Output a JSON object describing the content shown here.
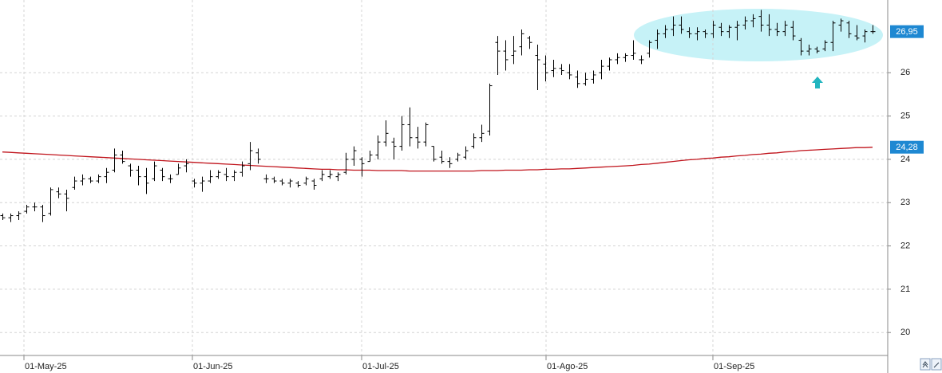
{
  "chart_data": {
    "type": "ohlc",
    "ohlc": [
      [
        22.7,
        22.75,
        22.6,
        22.65
      ],
      [
        22.65,
        22.75,
        22.55,
        22.7
      ],
      [
        22.7,
        22.8,
        22.6,
        22.75
      ],
      [
        22.8,
        22.95,
        22.75,
        22.9
      ],
      [
        22.9,
        23.0,
        22.8,
        22.9
      ],
      [
        22.9,
        22.95,
        22.55,
        22.7
      ],
      [
        22.75,
        23.35,
        22.7,
        23.3
      ],
      [
        23.25,
        23.35,
        23.1,
        23.2
      ],
      [
        23.2,
        23.3,
        22.8,
        23.1
      ],
      [
        23.35,
        23.6,
        23.3,
        23.5
      ],
      [
        23.5,
        23.65,
        23.4,
        23.55
      ],
      [
        23.55,
        23.6,
        23.45,
        23.5
      ],
      [
        23.5,
        23.65,
        23.45,
        23.6
      ],
      [
        23.6,
        23.8,
        23.45,
        23.7
      ],
      [
        23.75,
        24.25,
        23.7,
        24.1
      ],
      [
        24.1,
        24.2,
        23.9,
        23.95
      ],
      [
        23.85,
        23.9,
        23.6,
        23.75
      ],
      [
        23.75,
        23.85,
        23.4,
        23.6
      ],
      [
        23.6,
        23.8,
        23.2,
        23.45
      ],
      [
        23.55,
        23.95,
        23.5,
        23.85
      ],
      [
        23.75,
        23.8,
        23.5,
        23.6
      ],
      [
        23.55,
        23.65,
        23.45,
        23.55
      ],
      [
        23.65,
        23.9,
        23.65,
        23.8
      ],
      [
        23.85,
        24.0,
        23.7,
        23.9
      ],
      [
        23.5,
        23.55,
        23.35,
        23.45
      ],
      [
        23.45,
        23.6,
        23.25,
        23.5
      ],
      [
        23.5,
        23.75,
        23.45,
        23.6
      ],
      [
        23.6,
        23.75,
        23.55,
        23.7
      ],
      [
        23.65,
        23.8,
        23.5,
        23.6
      ],
      [
        23.6,
        23.75,
        23.5,
        23.7
      ],
      [
        23.7,
        23.95,
        23.6,
        23.85
      ],
      [
        23.9,
        24.4,
        23.75,
        24.2
      ],
      [
        24.15,
        24.25,
        23.9,
        24.0
      ],
      [
        23.55,
        23.65,
        23.45,
        23.55
      ],
      [
        23.55,
        23.6,
        23.45,
        23.5
      ],
      [
        23.5,
        23.55,
        23.4,
        23.45
      ],
      [
        23.45,
        23.55,
        23.35,
        23.5
      ],
      [
        23.45,
        23.5,
        23.35,
        23.4
      ],
      [
        23.45,
        23.6,
        23.4,
        23.55
      ],
      [
        23.5,
        23.55,
        23.3,
        23.4
      ],
      [
        23.55,
        23.75,
        23.5,
        23.65
      ],
      [
        23.6,
        23.75,
        23.55,
        23.65
      ],
      [
        23.6,
        23.7,
        23.5,
        23.65
      ],
      [
        23.7,
        24.15,
        23.65,
        24.0
      ],
      [
        24.0,
        24.3,
        23.85,
        24.2
      ],
      [
        24.0,
        24.05,
        23.6,
        23.9
      ],
      [
        23.95,
        24.2,
        23.95,
        24.1
      ],
      [
        24.1,
        24.55,
        24.0,
        24.4
      ],
      [
        24.4,
        24.9,
        24.3,
        24.6
      ],
      [
        24.4,
        24.5,
        24.0,
        24.3
      ],
      [
        24.3,
        25.0,
        24.2,
        24.8
      ],
      [
        24.8,
        25.2,
        24.3,
        24.5
      ],
      [
        24.5,
        24.75,
        24.25,
        24.4
      ],
      [
        24.4,
        24.85,
        24.3,
        24.8
      ],
      [
        24.3,
        24.3,
        23.95,
        24.0
      ],
      [
        24.05,
        24.2,
        23.9,
        23.95
      ],
      [
        23.95,
        24.05,
        23.8,
        23.9
      ],
      [
        24.0,
        24.15,
        23.95,
        24.1
      ],
      [
        24.05,
        24.3,
        24.0,
        24.2
      ],
      [
        24.3,
        24.6,
        24.25,
        24.5
      ],
      [
        24.5,
        24.8,
        24.4,
        24.6
      ],
      [
        24.65,
        25.75,
        24.55,
        25.7
      ],
      [
        26.7,
        26.85,
        25.95,
        26.5
      ],
      [
        26.5,
        26.75,
        26.05,
        26.3
      ],
      [
        26.4,
        26.85,
        26.2,
        26.5
      ],
      [
        26.6,
        27.0,
        26.4,
        26.9
      ],
      [
        26.8,
        26.85,
        26.55,
        26.7
      ],
      [
        26.4,
        26.65,
        25.6,
        26.3
      ],
      [
        26.2,
        26.4,
        25.8,
        26.0
      ],
      [
        26.05,
        26.3,
        25.9,
        26.1
      ],
      [
        26.1,
        26.2,
        25.95,
        26.05
      ],
      [
        26.0,
        26.2,
        25.85,
        25.95
      ],
      [
        25.9,
        26.05,
        25.65,
        25.75
      ],
      [
        25.75,
        26.0,
        25.7,
        25.85
      ],
      [
        25.85,
        26.05,
        25.75,
        25.95
      ],
      [
        26.0,
        26.3,
        25.85,
        26.15
      ],
      [
        26.15,
        26.35,
        26.05,
        26.3
      ],
      [
        26.3,
        26.45,
        26.2,
        26.35
      ],
      [
        26.35,
        26.45,
        26.25,
        26.4
      ],
      [
        26.4,
        26.75,
        26.3,
        26.45
      ],
      [
        26.3,
        26.4,
        26.2,
        26.3
      ],
      [
        26.45,
        26.75,
        26.35,
        26.7
      ],
      [
        26.75,
        27.0,
        26.55,
        26.9
      ],
      [
        26.9,
        27.1,
        26.8,
        27.0
      ],
      [
        27.0,
        27.3,
        26.85,
        27.1
      ],
      [
        27.1,
        27.3,
        26.9,
        27.0
      ],
      [
        26.95,
        27.05,
        26.8,
        26.9
      ],
      [
        26.9,
        27.05,
        26.75,
        26.95
      ],
      [
        26.95,
        27.0,
        26.8,
        26.9
      ],
      [
        26.9,
        27.2,
        26.8,
        27.1
      ],
      [
        27.05,
        27.15,
        26.85,
        26.95
      ],
      [
        26.95,
        27.1,
        26.8,
        27.05
      ],
      [
        27.05,
        27.2,
        26.75,
        27.1
      ],
      [
        27.1,
        27.3,
        27.0,
        27.2
      ],
      [
        27.2,
        27.35,
        27.05,
        27.25
      ],
      [
        27.3,
        27.45,
        26.95,
        27.1
      ],
      [
        27.1,
        27.35,
        26.85,
        27.0
      ],
      [
        27.0,
        27.15,
        26.85,
        26.95
      ],
      [
        26.95,
        27.2,
        26.85,
        27.1
      ],
      [
        27.05,
        27.2,
        26.75,
        26.85
      ],
      [
        26.75,
        26.8,
        26.4,
        26.5
      ],
      [
        26.5,
        26.65,
        26.4,
        26.55
      ],
      [
        26.55,
        26.6,
        26.45,
        26.5
      ],
      [
        26.55,
        26.75,
        26.5,
        26.7
      ],
      [
        26.7,
        27.2,
        26.5,
        27.15
      ],
      [
        27.1,
        27.25,
        26.95,
        27.2
      ],
      [
        27.15,
        27.2,
        26.8,
        26.9
      ],
      [
        26.85,
        27.1,
        26.75,
        26.8
      ],
      [
        26.85,
        27.0,
        26.7,
        26.95
      ],
      [
        26.95,
        27.1,
        26.9,
        26.95
      ]
    ],
    "bar_color": "#000000",
    "moving_average": {
      "color": "#c0141c",
      "values": [
        24.17,
        24.16,
        24.15,
        24.14,
        24.13,
        24.12,
        24.11,
        24.1,
        24.09,
        24.08,
        24.07,
        24.06,
        24.05,
        24.04,
        24.03,
        24.02,
        24.01,
        24.0,
        23.99,
        23.98,
        23.97,
        23.96,
        23.95,
        23.94,
        23.93,
        23.92,
        23.91,
        23.9,
        23.89,
        23.88,
        23.87,
        23.86,
        23.85,
        23.84,
        23.83,
        23.82,
        23.81,
        23.8,
        23.79,
        23.78,
        23.77,
        23.77,
        23.76,
        23.76,
        23.75,
        23.75,
        23.75,
        23.74,
        23.74,
        23.74,
        23.74,
        23.73,
        23.73,
        23.73,
        23.73,
        23.73,
        23.73,
        23.73,
        23.73,
        23.73,
        23.74,
        23.74,
        23.74,
        23.75,
        23.75,
        23.75,
        23.76,
        23.76,
        23.77,
        23.77,
        23.78,
        23.78,
        23.79,
        23.8,
        23.81,
        23.82,
        23.83,
        23.84,
        23.85,
        23.86,
        23.88,
        23.89,
        23.91,
        23.93,
        23.95,
        23.97,
        23.99,
        24.0,
        24.02,
        24.03,
        24.05,
        24.06,
        24.08,
        24.09,
        24.11,
        24.12,
        24.14,
        24.15,
        24.17,
        24.18,
        24.2,
        24.21,
        24.22,
        24.23,
        24.24,
        24.25,
        24.26,
        24.27,
        24.27,
        24.28
      ]
    },
    "last_price": {
      "value": 26.95,
      "label": "26,95"
    },
    "ma_last": {
      "value": 24.28,
      "label": "24,28"
    },
    "label_color": "#1e88d2",
    "xlim": [
      -0.3,
      111.1
    ],
    "xticks": [
      {
        "value": 2.7,
        "label": "01-May-25"
      },
      {
        "value": 23.8,
        "label": "01-Jun-25"
      },
      {
        "value": 45,
        "label": "01-Jul-25"
      },
      {
        "value": 68.1,
        "label": "01-Ago-25"
      },
      {
        "value": 89,
        "label": "01-Sep-25"
      }
    ],
    "ylim": [
      19.47,
      27.68
    ],
    "yticks": [
      20,
      21,
      22,
      23,
      24,
      25,
      26
    ],
    "grid": true
  }
}
